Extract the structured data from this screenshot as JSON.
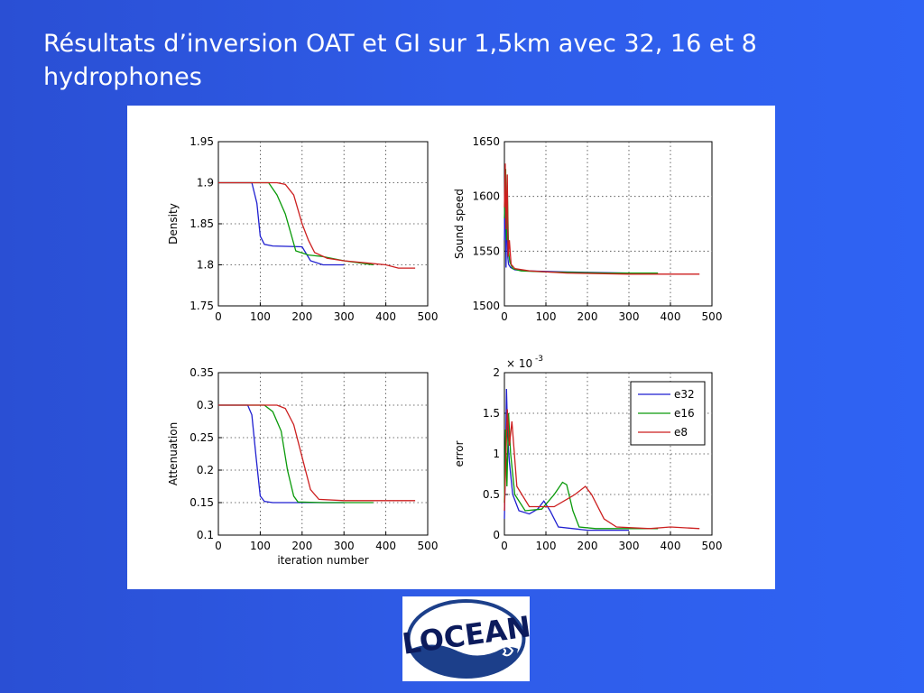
{
  "slide": {
    "title": "Résultats d’inversion OAT et GI sur 1,5km avec 32, 16 et 8 hydrophones"
  },
  "logo": {
    "text": "LOCEAN"
  },
  "colors": {
    "background": "#2f5ce8",
    "e32": "#1f1fd0",
    "e16": "#0a9a0a",
    "e8": "#cc1f1f"
  },
  "chart_data": [
    {
      "type": "line",
      "ylabel": "Density",
      "xlabel": "",
      "xlim": [
        0,
        500
      ],
      "ylim": [
        1.75,
        1.95
      ],
      "xticks": [
        "0",
        "100",
        "200",
        "300",
        "400",
        "500"
      ],
      "yticks": [
        "1.75",
        "1.8",
        "1.85",
        "1.9",
        "1.95"
      ],
      "grid": true,
      "series": [
        {
          "key": "e32",
          "x": [
            0,
            80,
            92,
            100,
            110,
            130,
            200,
            220,
            250,
            300
          ],
          "y": [
            1.9,
            1.9,
            1.875,
            1.835,
            1.825,
            1.823,
            1.822,
            1.805,
            1.8,
            1.8
          ]
        },
        {
          "key": "e16",
          "x": [
            0,
            120,
            140,
            160,
            175,
            185,
            215,
            250,
            300,
            370
          ],
          "y": [
            1.9,
            1.9,
            1.885,
            1.862,
            1.835,
            1.817,
            1.812,
            1.81,
            1.805,
            1.8
          ]
        },
        {
          "key": "e8",
          "x": [
            0,
            140,
            160,
            180,
            200,
            215,
            230,
            260,
            300,
            360,
            400,
            430,
            470
          ],
          "y": [
            1.9,
            1.9,
            1.898,
            1.885,
            1.85,
            1.83,
            1.815,
            1.808,
            1.805,
            1.802,
            1.8,
            1.796,
            1.796
          ]
        }
      ]
    },
    {
      "type": "line",
      "ylabel": "Sound speed",
      "xlabel": "",
      "xlim": [
        0,
        500
      ],
      "ylim": [
        1500,
        1650
      ],
      "xticks": [
        "0",
        "100",
        "200",
        "300",
        "400",
        "500"
      ],
      "yticks": [
        "1500",
        "1550",
        "1600",
        "1650"
      ],
      "grid": true,
      "series": [
        {
          "key": "e32",
          "x": [
            0,
            2,
            4,
            6,
            8,
            10,
            15,
            25,
            50,
            150,
            300
          ],
          "y": [
            1560,
            1620,
            1535,
            1600,
            1545,
            1538,
            1535,
            1533,
            1532,
            1531,
            1530
          ]
        },
        {
          "key": "e16",
          "x": [
            0,
            3,
            5,
            7,
            10,
            13,
            20,
            40,
            100,
            250,
            370
          ],
          "y": [
            1580,
            1625,
            1560,
            1610,
            1550,
            1540,
            1534,
            1532,
            1531,
            1530,
            1530
          ]
        },
        {
          "key": "e8",
          "x": [
            0,
            2,
            4,
            7,
            9,
            12,
            16,
            25,
            60,
            150,
            300,
            470
          ],
          "y": [
            1590,
            1630,
            1570,
            1620,
            1545,
            1560,
            1538,
            1534,
            1532,
            1530,
            1529,
            1529
          ]
        }
      ]
    },
    {
      "type": "line",
      "ylabel": "Attenuation",
      "xlabel": "iteration number",
      "xlim": [
        0,
        500
      ],
      "ylim": [
        0.1,
        0.35
      ],
      "xticks": [
        "0",
        "100",
        "200",
        "300",
        "400",
        "500"
      ],
      "yticks": [
        "0.1",
        "0.15",
        "0.2",
        "0.25",
        "0.3",
        "0.35"
      ],
      "grid": true,
      "series": [
        {
          "key": "e32",
          "x": [
            0,
            70,
            80,
            90,
            100,
            110,
            130,
            200,
            300
          ],
          "y": [
            0.3,
            0.3,
            0.285,
            0.22,
            0.16,
            0.152,
            0.15,
            0.15,
            0.15
          ]
        },
        {
          "key": "e16",
          "x": [
            0,
            110,
            130,
            150,
            165,
            180,
            190,
            250,
            370
          ],
          "y": [
            0.3,
            0.3,
            0.29,
            0.26,
            0.2,
            0.16,
            0.151,
            0.15,
            0.15
          ]
        },
        {
          "key": "e8",
          "x": [
            0,
            140,
            160,
            180,
            200,
            220,
            240,
            300,
            400,
            470
          ],
          "y": [
            0.3,
            0.3,
            0.295,
            0.27,
            0.22,
            0.17,
            0.155,
            0.153,
            0.153,
            0.153
          ]
        }
      ]
    },
    {
      "type": "line",
      "ylabel": "error",
      "xlabel": "",
      "multiplier": "× 10",
      "exponent": "-3",
      "xlim": [
        0,
        500
      ],
      "ylim": [
        0,
        2
      ],
      "xticks": [
        "0",
        "100",
        "200",
        "300",
        "400",
        "500"
      ],
      "yticks": [
        "0",
        "0.5",
        "1",
        "1.5",
        "2"
      ],
      "grid": true,
      "legend": {
        "position": "top-right",
        "entries": [
          "e32",
          "e16",
          "e8"
        ]
      },
      "series": [
        {
          "key": "e32",
          "name": "e32",
          "x": [
            0,
            3,
            5,
            8,
            12,
            20,
            35,
            60,
            80,
            95,
            110,
            130,
            200,
            300
          ],
          "y": [
            0.2,
            1.0,
            1.8,
            1.2,
            0.9,
            0.5,
            0.3,
            0.26,
            0.32,
            0.42,
            0.3,
            0.1,
            0.06,
            0.06
          ]
        },
        {
          "key": "e16",
          "name": "e16",
          "x": [
            0,
            3,
            6,
            10,
            15,
            25,
            50,
            90,
            120,
            140,
            150,
            165,
            180,
            220,
            370
          ],
          "y": [
            0.4,
            1.3,
            0.6,
            1.5,
            1.0,
            0.5,
            0.3,
            0.32,
            0.5,
            0.65,
            0.62,
            0.3,
            0.1,
            0.08,
            0.08
          ]
        },
        {
          "key": "e8",
          "name": "e8",
          "x": [
            0,
            4,
            7,
            12,
            18,
            30,
            60,
            120,
            170,
            195,
            210,
            240,
            270,
            350,
            400,
            470
          ],
          "y": [
            0.3,
            1.0,
            1.55,
            1.1,
            1.4,
            0.6,
            0.35,
            0.35,
            0.5,
            0.6,
            0.5,
            0.2,
            0.1,
            0.08,
            0.1,
            0.08
          ]
        }
      ]
    }
  ]
}
